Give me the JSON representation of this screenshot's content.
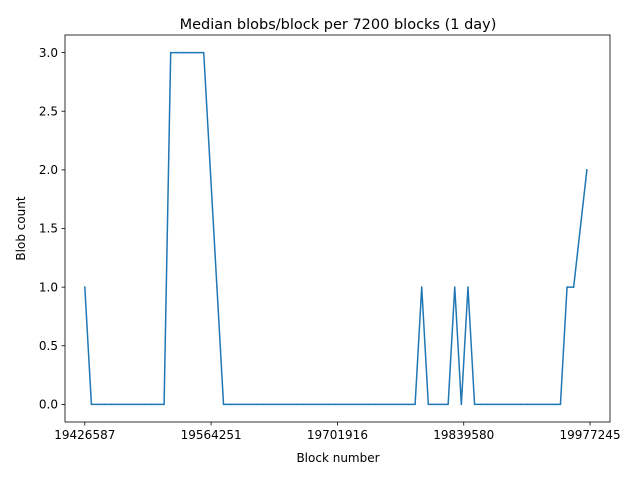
{
  "chart_data": {
    "type": "line",
    "title": "Median blobs/block per 7200 blocks (1 day)",
    "xlabel": "Block number",
    "ylabel": "Blob count",
    "xlim": [
      19405000,
      19999000
    ],
    "ylim": [
      -0.15,
      3.15
    ],
    "xticks": [
      19426587,
      19564251,
      19701916,
      19839580,
      19977245
    ],
    "xtick_labels": [
      "19426587",
      "19564251",
      "19701916",
      "19839580",
      "19977245"
    ],
    "yticks": [
      0.0,
      0.5,
      1.0,
      1.5,
      2.0,
      2.5,
      3.0
    ],
    "ytick_labels": [
      "0.0",
      "0.5",
      "1.0",
      "1.5",
      "2.0",
      "2.5",
      "3.0"
    ],
    "grid": false,
    "legend": "none",
    "color": "#1f77b4",
    "series": [
      {
        "x": [
          19426587,
          19433787,
          19440987,
          19448187,
          19455387,
          19462587,
          19469787,
          19476987,
          19484187,
          19491387,
          19498587,
          19505787,
          19512987,
          19520187,
          19527387,
          19534587,
          19541787,
          19548987,
          19556187,
          19563387,
          19570587,
          19577787,
          19584987,
          19592187,
          19599387,
          19606587,
          19613787,
          19620987,
          19628187,
          19635387,
          19642587,
          19649787,
          19656987,
          19664187,
          19671387,
          19678587,
          19685787,
          19692987,
          19700187,
          19707387,
          19714587,
          19721787,
          19728987,
          19736187,
          19743387,
          19750587,
          19757787,
          19764987,
          19772187,
          19779387,
          19786587,
          19793787,
          19800987,
          19808187,
          19815387,
          19822587,
          19829787,
          19836987,
          19844187,
          19851387,
          19858587,
          19865787,
          19872987,
          19880187,
          19887387,
          19894587,
          19901787,
          19908987,
          19916187,
          19923387,
          19930587,
          19937787,
          19944987,
          19952187,
          19959387,
          19966587,
          19973787
        ],
        "values": [
          1,
          0,
          0,
          0,
          0,
          0,
          0,
          0,
          0,
          0,
          0,
          0,
          0,
          3,
          3,
          3,
          3,
          3,
          3,
          2,
          1,
          0,
          0,
          0,
          0,
          0,
          0,
          0,
          0,
          0,
          0,
          0,
          0,
          0,
          0,
          0,
          0,
          0,
          0,
          0,
          0,
          0,
          0,
          0,
          0,
          0,
          0,
          0,
          0,
          0,
          0,
          1,
          0,
          0,
          0,
          0,
          1,
          0,
          1,
          0,
          0,
          0,
          0,
          0,
          0,
          0,
          0,
          0,
          0,
          0,
          0,
          0,
          0,
          1,
          1,
          1.5,
          2
        ]
      }
    ]
  }
}
